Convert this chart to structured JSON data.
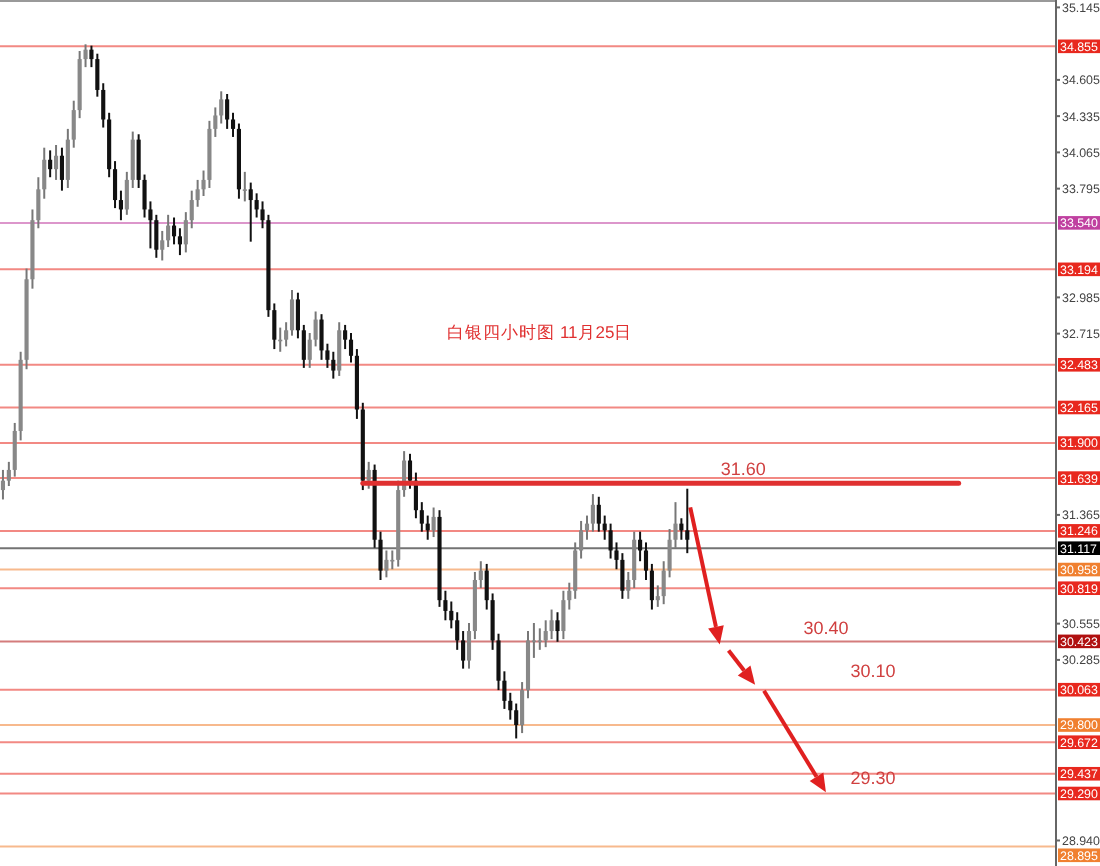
{
  "chart_data": {
    "type": "candlestick",
    "title": "白银四小时图 11月25日",
    "tick_labels": "y",
    "categories": [
      null,
      null,
      null,
      null,
      null,
      null,
      null,
      null,
      null,
      null,
      null,
      null,
      null,
      null,
      null,
      null,
      null,
      null,
      null,
      null,
      null,
      null,
      null,
      null,
      null,
      null,
      null,
      null,
      null,
      null,
      null,
      null,
      null,
      null,
      null,
      null,
      null,
      null,
      null,
      null,
      null,
      null,
      null,
      null,
      null,
      null,
      null,
      null,
      null,
      null,
      null,
      null,
      null,
      null,
      null,
      null,
      null,
      null,
      null,
      null,
      null,
      null,
      null,
      null,
      null,
      null,
      null,
      null,
      null,
      null,
      null,
      null,
      null,
      null,
      null,
      null,
      null,
      null,
      null,
      null,
      null,
      null,
      null,
      null,
      null,
      null,
      null,
      null,
      null,
      null,
      null,
      null,
      null,
      null,
      null,
      null,
      null,
      null,
      null,
      null,
      null,
      null,
      null,
      null,
      null,
      null,
      null,
      null,
      null,
      null,
      null,
      null,
      null,
      null,
      null,
      null,
      null,
      null,
      null,
      null,
      null,
      null,
      null,
      null,
      null,
      null,
      null,
      null,
      null,
      null,
      null,
      null,
      null,
      null,
      null,
      null,
      null,
      null,
      null,
      null,
      null,
      null,
      null,
      null,
      null,
      null,
      null,
      null,
      null,
      null,
      null,
      null,
      null,
      null,
      null,
      null,
      null,
      null,
      null,
      null,
      null,
      null,
      null,
      null,
      null,
      null,
      null,
      null,
      null,
      null,
      null,
      null,
      null,
      null,
      null,
      null,
      null,
      null,
      null
    ],
    "ohlc": [
      [
        31.55,
        31.7,
        31.48,
        31.62
      ],
      [
        31.62,
        31.76,
        31.58,
        31.7
      ],
      [
        31.7,
        32.05,
        31.65,
        31.99
      ],
      [
        31.99,
        32.58,
        31.92,
        32.52
      ],
      [
        32.52,
        33.2,
        32.45,
        33.12
      ],
      [
        33.12,
        33.64,
        33.05,
        33.56
      ],
      [
        33.56,
        33.88,
        33.5,
        33.79
      ],
      [
        33.79,
        34.1,
        33.72,
        34.01
      ],
      [
        34.01,
        34.08,
        33.88,
        33.94
      ],
      [
        33.94,
        34.12,
        33.86,
        34.04
      ],
      [
        34.04,
        34.1,
        33.78,
        33.86
      ],
      [
        33.86,
        34.24,
        33.8,
        34.16
      ],
      [
        34.16,
        34.45,
        34.1,
        34.38
      ],
      [
        34.38,
        34.82,
        34.32,
        34.76
      ],
      [
        34.76,
        34.87,
        34.7,
        34.83
      ],
      [
        34.83,
        34.86,
        34.7,
        34.76
      ],
      [
        34.76,
        34.8,
        34.48,
        34.53
      ],
      [
        34.53,
        34.58,
        34.25,
        34.31
      ],
      [
        34.31,
        34.36,
        33.88,
        33.94
      ],
      [
        33.94,
        34.0,
        33.65,
        33.71
      ],
      [
        33.71,
        33.78,
        33.56,
        33.64
      ],
      [
        33.64,
        33.92,
        33.6,
        33.86
      ],
      [
        33.86,
        34.22,
        33.8,
        34.16
      ],
      [
        34.16,
        34.2,
        33.8,
        33.86
      ],
      [
        33.86,
        33.9,
        33.58,
        33.64
      ],
      [
        33.64,
        33.7,
        33.35,
        33.56
      ],
      [
        33.56,
        33.6,
        33.28,
        33.34
      ],
      [
        33.34,
        33.48,
        33.26,
        33.41
      ],
      [
        33.41,
        33.6,
        33.36,
        33.52
      ],
      [
        33.52,
        33.58,
        33.38,
        33.44
      ],
      [
        33.44,
        33.5,
        33.3,
        33.38
      ],
      [
        33.38,
        33.62,
        33.32,
        33.56
      ],
      [
        33.56,
        33.78,
        33.5,
        33.71
      ],
      [
        33.71,
        33.86,
        33.66,
        33.79
      ],
      [
        33.79,
        33.93,
        33.74,
        33.86
      ],
      [
        33.86,
        34.3,
        33.8,
        34.24
      ],
      [
        34.24,
        34.4,
        34.18,
        34.34
      ],
      [
        34.34,
        34.52,
        34.28,
        34.46
      ],
      [
        34.46,
        34.5,
        34.24,
        34.31
      ],
      [
        34.31,
        34.36,
        34.18,
        34.24
      ],
      [
        34.24,
        34.28,
        33.72,
        33.79
      ],
      [
        33.79,
        33.92,
        33.7,
        33.79
      ],
      [
        33.79,
        33.84,
        33.4,
        33.71
      ],
      [
        33.71,
        33.76,
        33.58,
        33.64
      ],
      [
        33.64,
        33.7,
        33.5,
        33.56
      ],
      [
        33.56,
        33.6,
        32.84,
        32.89
      ],
      [
        32.89,
        32.94,
        32.6,
        32.67
      ],
      [
        32.67,
        32.76,
        32.58,
        32.67
      ],
      [
        32.67,
        32.8,
        32.62,
        32.74
      ],
      [
        32.74,
        33.04,
        32.7,
        32.97
      ],
      [
        32.97,
        33.02,
        32.68,
        32.74
      ],
      [
        32.74,
        32.78,
        32.46,
        32.52
      ],
      [
        32.52,
        32.72,
        32.46,
        32.67
      ],
      [
        32.67,
        32.88,
        32.62,
        32.82
      ],
      [
        32.82,
        32.86,
        32.52,
        32.59
      ],
      [
        32.59,
        32.64,
        32.46,
        32.52
      ],
      [
        32.52,
        32.58,
        32.38,
        32.44
      ],
      [
        32.44,
        32.8,
        32.4,
        32.74
      ],
      [
        32.74,
        32.78,
        32.6,
        32.67
      ],
      [
        32.67,
        32.72,
        32.5,
        32.55
      ],
      [
        32.55,
        32.6,
        32.08,
        32.15
      ],
      [
        32.15,
        32.2,
        31.55,
        31.62
      ],
      [
        31.62,
        31.76,
        31.56,
        31.7
      ],
      [
        31.7,
        31.74,
        31.12,
        31.18
      ],
      [
        31.18,
        31.24,
        30.88,
        30.95
      ],
      [
        30.95,
        31.1,
        30.9,
        31.03
      ],
      [
        31.03,
        31.1,
        30.96,
        31.03
      ],
      [
        31.03,
        31.62,
        30.98,
        31.55
      ],
      [
        31.55,
        31.84,
        31.5,
        31.77
      ],
      [
        31.77,
        31.82,
        31.56,
        31.62
      ],
      [
        31.62,
        31.68,
        31.34,
        31.4
      ],
      [
        31.4,
        31.46,
        31.24,
        31.3
      ],
      [
        31.3,
        31.36,
        31.18,
        31.25
      ],
      [
        31.25,
        31.42,
        31.2,
        31.35
      ],
      [
        31.35,
        31.4,
        30.68,
        30.73
      ],
      [
        30.73,
        30.8,
        30.58,
        30.65
      ],
      [
        30.65,
        30.72,
        30.52,
        30.58
      ],
      [
        30.58,
        30.64,
        30.36,
        30.43
      ],
      [
        30.43,
        30.5,
        30.22,
        30.28
      ],
      [
        30.28,
        30.56,
        30.22,
        30.5
      ],
      [
        30.5,
        30.94,
        30.44,
        30.88
      ],
      [
        30.88,
        31.02,
        30.82,
        30.95
      ],
      [
        30.95,
        31.0,
        30.66,
        30.73
      ],
      [
        30.73,
        30.78,
        30.36,
        30.43
      ],
      [
        30.43,
        30.48,
        30.06,
        30.13
      ],
      [
        30.13,
        30.2,
        29.92,
        29.98
      ],
      [
        29.98,
        30.04,
        29.84,
        29.91
      ],
      [
        29.91,
        29.96,
        29.7,
        29.8
      ],
      [
        29.8,
        30.12,
        29.74,
        30.06
      ],
      [
        30.06,
        30.5,
        30.0,
        30.43
      ],
      [
        30.43,
        30.56,
        30.3,
        30.43
      ],
      [
        30.43,
        30.52,
        30.36,
        30.43
      ],
      [
        30.43,
        30.58,
        30.38,
        30.5
      ],
      [
        30.5,
        30.66,
        30.44,
        30.58
      ],
      [
        30.58,
        30.64,
        30.42,
        30.5
      ],
      [
        30.5,
        30.8,
        30.44,
        30.73
      ],
      [
        30.73,
        30.86,
        30.66,
        30.8
      ],
      [
        30.8,
        31.16,
        30.74,
        31.1
      ],
      [
        31.1,
        31.32,
        31.04,
        31.25
      ],
      [
        31.25,
        31.36,
        31.18,
        31.3
      ],
      [
        31.3,
        31.52,
        31.24,
        31.44
      ],
      [
        31.44,
        31.5,
        31.24,
        31.3
      ],
      [
        31.3,
        31.36,
        31.18,
        31.25
      ],
      [
        31.25,
        31.3,
        31.04,
        31.1
      ],
      [
        31.1,
        31.16,
        30.96,
        31.03
      ],
      [
        31.03,
        31.08,
        30.74,
        30.8
      ],
      [
        30.8,
        30.94,
        30.74,
        30.88
      ],
      [
        30.88,
        31.24,
        30.82,
        31.18
      ],
      [
        31.18,
        31.24,
        31.02,
        31.1
      ],
      [
        31.1,
        31.16,
        30.88,
        30.95
      ],
      [
        30.95,
        31.0,
        30.66,
        30.73
      ],
      [
        30.73,
        30.84,
        30.68,
        30.76
      ],
      [
        30.76,
        31.02,
        30.7,
        30.95
      ],
      [
        30.95,
        31.26,
        30.9,
        31.18
      ],
      [
        31.18,
        31.46,
        31.12,
        31.3
      ],
      [
        31.3,
        31.34,
        31.18,
        31.25
      ],
      [
        31.25,
        31.56,
        31.08,
        31.18
      ],
      null,
      null,
      null,
      null,
      null,
      null,
      null,
      null,
      null,
      null,
      null,
      null,
      null,
      null,
      null,
      null,
      null,
      null,
      null,
      null,
      null,
      null,
      null,
      null,
      null,
      null,
      null,
      null,
      null,
      null,
      null,
      null,
      null,
      null,
      null,
      null,
      null,
      null,
      null,
      null,
      null,
      null,
      null,
      null,
      null,
      null,
      null,
      null,
      null,
      null,
      null,
      null,
      null,
      null,
      null,
      null,
      null,
      null,
      null,
      null,
      null,
      null
    ],
    "series": [
      {
        "type": "line",
        "color": "#e03030",
        "values": [
          null,
          null,
          null,
          null,
          null,
          null,
          null,
          null,
          null,
          null,
          null,
          null,
          null,
          null,
          null,
          null,
          null,
          null,
          null,
          null,
          null,
          null,
          null,
          null,
          null,
          null,
          null,
          null,
          null,
          null,
          null,
          null,
          null,
          null,
          null,
          null,
          null,
          null,
          null,
          null,
          null,
          null,
          null,
          null,
          null,
          null,
          null,
          null,
          null,
          null,
          null,
          null,
          null,
          null,
          null,
          null,
          null,
          null,
          null,
          null,
          null,
          31.6,
          31.6,
          31.6,
          31.6,
          31.6,
          31.6,
          31.6,
          31.6,
          31.6,
          31.6,
          31.6,
          31.6,
          31.6,
          31.6,
          31.6,
          31.6,
          31.6,
          31.6,
          31.6,
          31.6,
          31.6,
          31.6,
          31.6,
          31.6,
          31.6,
          31.6,
          31.6,
          31.6,
          31.6,
          31.6,
          31.6,
          31.6,
          31.6,
          31.6,
          31.6,
          31.6,
          31.6,
          31.6,
          31.6,
          31.6,
          31.6,
          31.6,
          31.6,
          31.6,
          31.6,
          31.6,
          31.6,
          31.6,
          31.6,
          31.6,
          31.6,
          31.6,
          31.6,
          31.6,
          31.6,
          31.6,
          31.6,
          31.6,
          31.6,
          31.6,
          31.6,
          31.6,
          31.6,
          31.6,
          31.6,
          31.6,
          31.6,
          31.6,
          31.6,
          31.6,
          31.6,
          31.6,
          31.6,
          31.6,
          31.6,
          31.6,
          31.6,
          31.6,
          31.6,
          31.6,
          31.6,
          31.6,
          31.6,
          31.6,
          31.6,
          31.6,
          31.6,
          31.6,
          31.6,
          31.6,
          31.6,
          31.6,
          31.6,
          31.6,
          31.6,
          31.6,
          31.6,
          31.6,
          31.6,
          31.6,
          31.6,
          31.6,
          null,
          null,
          null,
          null,
          null,
          null,
          null,
          null,
          null,
          null,
          null,
          null,
          null,
          null,
          null,
          null
        ]
      }
    ],
    "ylim": [
      28.75,
      35.2
    ],
    "yticks": [
      35.145,
      34.605,
      34.335,
      34.065,
      33.795,
      32.985,
      32.715,
      31.365,
      30.555,
      30.285,
      {
        "value": 28.94,
        "label": "28.940"
      }
    ],
    "ref_lines": [
      {
        "axis": "y",
        "value": 34.855,
        "label": "34.855",
        "color": "#e8281e"
      },
      {
        "axis": "y",
        "value": 33.54,
        "label": "33.540",
        "color": "#c040a0"
      },
      {
        "axis": "y",
        "value": 33.194,
        "label": "33.194",
        "color": "#e8281e"
      },
      {
        "axis": "y",
        "value": 32.483,
        "label": "32.483",
        "color": "#e8281e"
      },
      {
        "axis": "y",
        "value": 32.165,
        "label": "32.165",
        "color": "#e8281e"
      },
      {
        "axis": "y",
        "value": 31.9,
        "label": "31.900",
        "color": "#e8281e"
      },
      {
        "axis": "y",
        "value": 31.639,
        "label": "31.639",
        "color": "#e8281e"
      },
      {
        "axis": "y",
        "value": 31.246,
        "label": "31.246",
        "color": "#e8281e"
      },
      {
        "axis": "y",
        "value": 31.117,
        "label": "31.117",
        "color": "#000000"
      },
      {
        "axis": "y",
        "value": 30.958,
        "label": "30.958",
        "color": "#f08030"
      },
      {
        "axis": "y",
        "value": 30.819,
        "label": "30.819",
        "color": "#e8281e"
      },
      {
        "axis": "y",
        "value": 30.423,
        "label": "30.423",
        "color": "#b01010"
      },
      {
        "axis": "y",
        "value": 30.063,
        "label": "30.063",
        "color": "#e8281e"
      },
      {
        "axis": "y",
        "value": 29.8,
        "label": "29.800",
        "color": "#f08030"
      },
      {
        "axis": "y",
        "value": 29.672,
        "label": "29.672",
        "color": "#e8281e"
      },
      {
        "axis": "y",
        "value": 29.437,
        "label": "29.437",
        "color": "#e8281e"
      },
      {
        "axis": "y",
        "value": 29.29,
        "label": "29.290",
        "color": "#e8281e"
      },
      {
        "axis": "y",
        "value": 28.895,
        "label": "28.895",
        "color": "#f08030"
      }
    ],
    "annotations": [
      {
        "text": "31.60",
        "y": 31.6
      },
      {
        "text": "30.40",
        "y": 30.4
      },
      {
        "text": "30.10",
        "y": 30.1
      },
      {
        "text": "29.30",
        "y": 29.3
      }
    ]
  }
}
